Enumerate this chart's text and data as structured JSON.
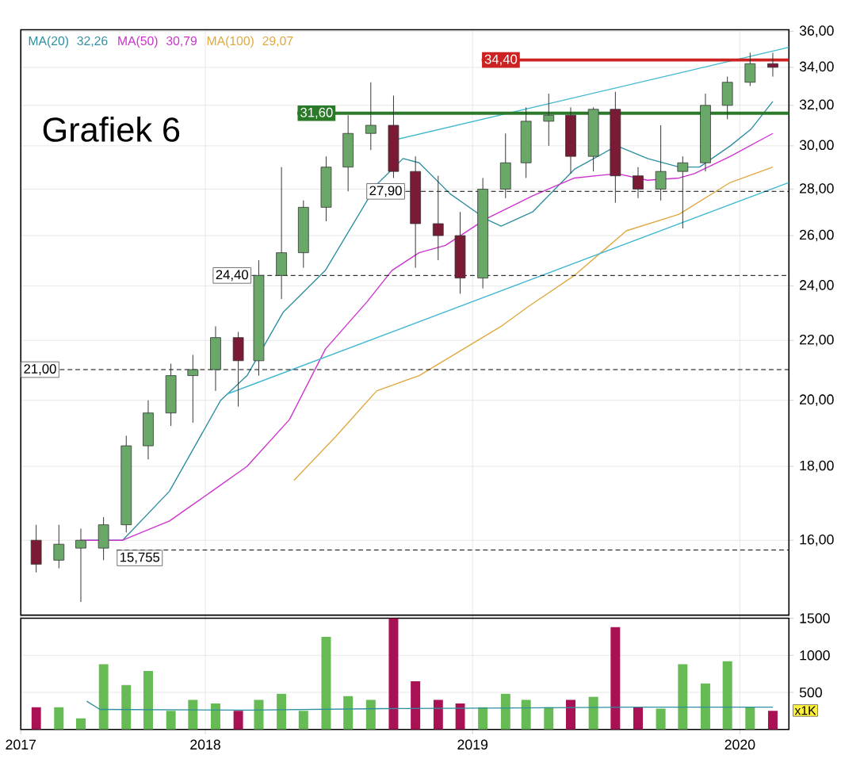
{
  "chart_data": [
    {
      "type": "candlestick",
      "title": "Grafiek 6",
      "x": [
        "2017-05-15",
        "2017-06-15",
        "2017-07-15",
        "2017-08-15",
        "2017-09-15",
        "2017-10-15",
        "2017-11-15",
        "2017-12-15",
        "2018-01-15",
        "2018-02-15",
        "2018-03-15",
        "2018-04-15",
        "2018-05-15",
        "2018-06-15",
        "2018-07-15",
        "2018-08-15",
        "2018-09-15",
        "2018-10-15",
        "2018-11-15",
        "2018-12-15",
        "2019-01-15",
        "2019-02-15",
        "2019-03-15",
        "2019-04-15",
        "2019-05-15",
        "2019-06-15",
        "2019-07-15",
        "2019-08-15",
        "2019-09-15",
        "2019-10-15",
        "2019-11-15",
        "2019-12-15",
        "2020-01-15",
        "2020-02-15"
      ],
      "ohlc": [
        [
          16.0,
          16.4,
          15.2,
          15.4
        ],
        [
          15.5,
          16.4,
          15.3,
          15.9
        ],
        [
          15.8,
          16.3,
          14.5,
          16.0
        ],
        [
          15.8,
          16.6,
          15.5,
          16.4
        ],
        [
          16.4,
          18.9,
          16.2,
          18.6
        ],
        [
          18.6,
          20.0,
          18.2,
          19.6
        ],
        [
          19.6,
          21.2,
          19.2,
          20.8
        ],
        [
          20.8,
          21.5,
          19.3,
          21.0
        ],
        [
          21.0,
          22.5,
          20.3,
          22.1
        ],
        [
          22.1,
          22.3,
          19.8,
          21.3
        ],
        [
          21.3,
          25.0,
          20.8,
          24.4
        ],
        [
          24.4,
          29.0,
          23.5,
          25.3
        ],
        [
          25.3,
          27.5,
          24.7,
          27.2
        ],
        [
          27.2,
          29.5,
          26.6,
          29.0
        ],
        [
          29.0,
          31.5,
          27.9,
          30.6
        ],
        [
          30.6,
          33.2,
          29.8,
          31.0
        ],
        [
          31.0,
          32.5,
          28.5,
          28.8
        ],
        [
          28.8,
          29.5,
          24.7,
          26.5
        ],
        [
          26.5,
          28.6,
          25.0,
          26.0
        ],
        [
          26.0,
          27.0,
          23.7,
          24.3
        ],
        [
          24.3,
          28.5,
          23.9,
          28.0
        ],
        [
          28.0,
          30.6,
          27.6,
          29.2
        ],
        [
          29.2,
          31.9,
          28.5,
          31.2
        ],
        [
          31.2,
          32.6,
          30.0,
          31.5
        ],
        [
          31.5,
          31.9,
          28.7,
          29.5
        ],
        [
          29.5,
          31.9,
          28.8,
          31.8
        ],
        [
          31.8,
          32.7,
          27.4,
          28.6
        ],
        [
          28.6,
          29.0,
          27.6,
          28.0
        ],
        [
          28.0,
          31.0,
          27.5,
          28.8
        ],
        [
          28.8,
          29.5,
          26.3,
          29.2
        ],
        [
          29.2,
          32.6,
          28.8,
          32.0
        ],
        [
          32.0,
          33.5,
          31.3,
          33.2
        ],
        [
          33.2,
          34.8,
          33.0,
          34.2
        ],
        [
          34.2,
          34.8,
          33.5,
          34.0
        ]
      ],
      "colors": [
        "#7a1a34",
        "#6aa86a",
        "#6aa86a",
        "#6aa86a",
        "#6aa86a",
        "#6aa86a",
        "#6aa86a",
        "#6aa86a",
        "#6aa86a",
        "#7a1a34",
        "#6aa86a",
        "#6aa86a",
        "#6aa86a",
        "#6aa86a",
        "#6aa86a",
        "#6aa86a",
        "#7a1a34",
        "#7a1a34",
        "#7a1a34",
        "#7a1a34",
        "#6aa86a",
        "#6aa86a",
        "#6aa86a",
        "#6aa86a",
        "#7a1a34",
        "#6aa86a",
        "#7a1a34",
        "#7a1a34",
        "#6aa86a",
        "#6aa86a",
        "#6aa86a",
        "#6aa86a",
        "#6aa86a",
        "#7a1a34"
      ],
      "series": [
        {
          "type": "line",
          "name": "MA(20)",
          "color": "#2f8fa0",
          "x": [
            "2017-07-23",
            "2017-09-10",
            "2017-11-13",
            "2018-01-22",
            "2018-02-27",
            "2018-04-17",
            "2018-06-14",
            "2018-08-23",
            "2018-09-28",
            "2018-10-20",
            "2018-12-01",
            "2019-01-19",
            "2019-02-09",
            "2019-03-24",
            "2019-05-20",
            "2019-07-17",
            "2019-08-28",
            "2019-10-10",
            "2019-11-07",
            "2019-12-19",
            "2020-01-16",
            "2020-02-15"
          ],
          "values": [
            16.0,
            16.0,
            17.3,
            20.0,
            20.8,
            23.0,
            24.6,
            28.2,
            29.4,
            29.2,
            27.8,
            26.7,
            26.4,
            27.0,
            28.9,
            30.0,
            29.4,
            29.0,
            29.0,
            30.0,
            30.8,
            32.2
          ]
        },
        {
          "type": "line",
          "name": "MA(50)",
          "color": "#cc33cc",
          "x": [
            "2017-07-15",
            "2017-09-10",
            "2017-11-13",
            "2018-01-10",
            "2018-02-27",
            "2018-04-26",
            "2018-06-14",
            "2018-08-10",
            "2018-09-13",
            "2018-10-20",
            "2018-11-25",
            "2019-01-19",
            "2019-03-24",
            "2019-05-20",
            "2019-07-17",
            "2019-08-28",
            "2019-10-10",
            "2019-10-31",
            "2019-12-19",
            "2020-02-15"
          ],
          "values": [
            16.0,
            16.0,
            16.5,
            17.3,
            18.0,
            19.4,
            21.7,
            23.4,
            24.6,
            25.3,
            25.6,
            26.7,
            27.7,
            28.5,
            28.7,
            28.4,
            28.5,
            28.7,
            29.5,
            30.6
          ]
        },
        {
          "type": "line",
          "name": "MA(100)",
          "color": "#e0a840",
          "x": [
            "2018-05-02",
            "2018-06-29",
            "2018-08-23",
            "2018-10-20",
            "2019-02-09",
            "2019-03-17",
            "2019-05-20",
            "2019-07-30",
            "2019-10-10",
            "2019-12-19",
            "2020-02-15"
          ],
          "values": [
            17.6,
            18.9,
            20.3,
            20.8,
            22.5,
            23.2,
            24.4,
            26.2,
            26.9,
            28.3,
            29.0
          ]
        },
        {
          "type": "line",
          "color": "#40b8d0",
          "x": [
            "2018-09-18",
            "2020-03-08"
          ],
          "values": [
            30.3,
            35.1
          ]
        },
        {
          "type": "line",
          "color": "#40b8d0",
          "x": [
            "2018-01-31",
            "2020-03-08"
          ],
          "values": [
            20.2,
            28.3
          ]
        }
      ],
      "annotations": [
        "32,26",
        "30,79",
        "29,07"
      ],
      "ref_lines": [
        {
          "axis": "y",
          "value": 34.4,
          "label": "34,40",
          "color": "#cc2222",
          "line_style": "solid"
        },
        {
          "axis": "y",
          "value": 31.6,
          "label": "31,60",
          "color": "#2a7a2a",
          "line_style": "solid"
        },
        {
          "axis": "y",
          "value": 27.9,
          "label": "27,90",
          "line_style": "dashed"
        },
        {
          "axis": "y",
          "value": 24.4,
          "label": "24,40",
          "line_style": "dashed"
        },
        {
          "axis": "y",
          "value": 21.0,
          "label": "21,00",
          "line_style": "dashed"
        },
        {
          "axis": "y",
          "value": 15.755,
          "label": "15,755",
          "line_style": "dashed"
        }
      ],
      "log": "y",
      "xlim": [
        "2017-04-24",
        "2020-03-08"
      ],
      "ylim": [
        14.2,
        36.1
      ],
      "xticks": [
        {
          "value": "2017-04-24",
          "label": null
        },
        {
          "value": "2018-01-01",
          "label": null
        },
        {
          "value": "2019-01-01",
          "label": null
        },
        {
          "value": "2020-01-01",
          "label": null
        }
      ],
      "yticks": [
        {
          "value": 16,
          "label": "16,00"
        },
        {
          "value": 18,
          "label": "18,00"
        },
        {
          "value": 20,
          "label": "20,00"
        },
        {
          "value": 22,
          "label": "22,00"
        },
        {
          "value": 24,
          "label": "24,00"
        },
        {
          "value": 26,
          "label": "26,00"
        },
        {
          "value": 28,
          "label": "28,00"
        },
        {
          "value": 30,
          "label": "30,00"
        },
        {
          "value": 32,
          "label": "32,00"
        },
        {
          "value": 34,
          "label": "34,00"
        },
        {
          "value": 36,
          "label": "36,00"
        }
      ],
      "tick_labels": "y",
      "grid": true,
      "legend": "top left"
    },
    {
      "type": "bar",
      "ylabel": "x1K",
      "x": [
        "2017-05-15",
        "2017-06-15",
        "2017-07-15",
        "2017-08-15",
        "2017-09-15",
        "2017-10-15",
        "2017-11-15",
        "2017-12-15",
        "2018-01-15",
        "2018-02-15",
        "2018-03-15",
        "2018-04-15",
        "2018-05-15",
        "2018-06-15",
        "2018-07-15",
        "2018-08-15",
        "2018-09-15",
        "2018-10-15",
        "2018-11-15",
        "2018-12-15",
        "2019-01-15",
        "2019-02-15",
        "2019-03-15",
        "2019-04-15",
        "2019-05-15",
        "2019-06-15",
        "2019-07-15",
        "2019-08-15",
        "2019-09-15",
        "2019-10-15",
        "2019-11-15",
        "2019-12-15",
        "2020-01-15",
        "2020-02-15"
      ],
      "series": [
        {
          "type": "bar",
          "values": [
            300,
            300,
            150,
            880,
            600,
            790,
            250,
            400,
            350,
            250,
            400,
            480,
            250,
            1250,
            450,
            400,
            1500,
            650,
            400,
            350,
            300,
            480,
            400,
            300,
            400,
            440,
            1380,
            300,
            280,
            880,
            620,
            920,
            300,
            250
          ],
          "colors": [
            "#aa1155",
            "#66bb55",
            "#66bb55",
            "#66bb55",
            "#66bb55",
            "#66bb55",
            "#66bb55",
            "#66bb55",
            "#66bb55",
            "#aa1155",
            "#66bb55",
            "#66bb55",
            "#66bb55",
            "#66bb55",
            "#66bb55",
            "#66bb55",
            "#aa1155",
            "#aa1155",
            "#aa1155",
            "#aa1155",
            "#66bb55",
            "#66bb55",
            "#66bb55",
            "#66bb55",
            "#aa1155",
            "#66bb55",
            "#aa1155",
            "#aa1155",
            "#66bb55",
            "#66bb55",
            "#66bb55",
            "#66bb55",
            "#66bb55",
            "#aa1155"
          ]
        },
        {
          "type": "line",
          "color": "#2f8fa0",
          "x": [
            "2017-07-23",
            "2017-08-10",
            "2018-03-01",
            "2018-09-01",
            "2019-03-01",
            "2019-08-01",
            "2020-02-15"
          ],
          "values": [
            380,
            270,
            260,
            280,
            290,
            300,
            300
          ]
        }
      ],
      "xlim": [
        "2017-04-24",
        "2020-03-08"
      ],
      "ylim": [
        0,
        1500
      ],
      "xticks": [
        {
          "value": "2017-04-24",
          "label": "2017"
        },
        {
          "value": "2018-01-01",
          "label": "2018"
        },
        {
          "value": "2019-01-01",
          "label": "2019"
        },
        {
          "value": "2020-01-01",
          "label": "2020"
        }
      ],
      "yticks": [
        500,
        1000,
        1500
      ],
      "grid": true
    }
  ]
}
